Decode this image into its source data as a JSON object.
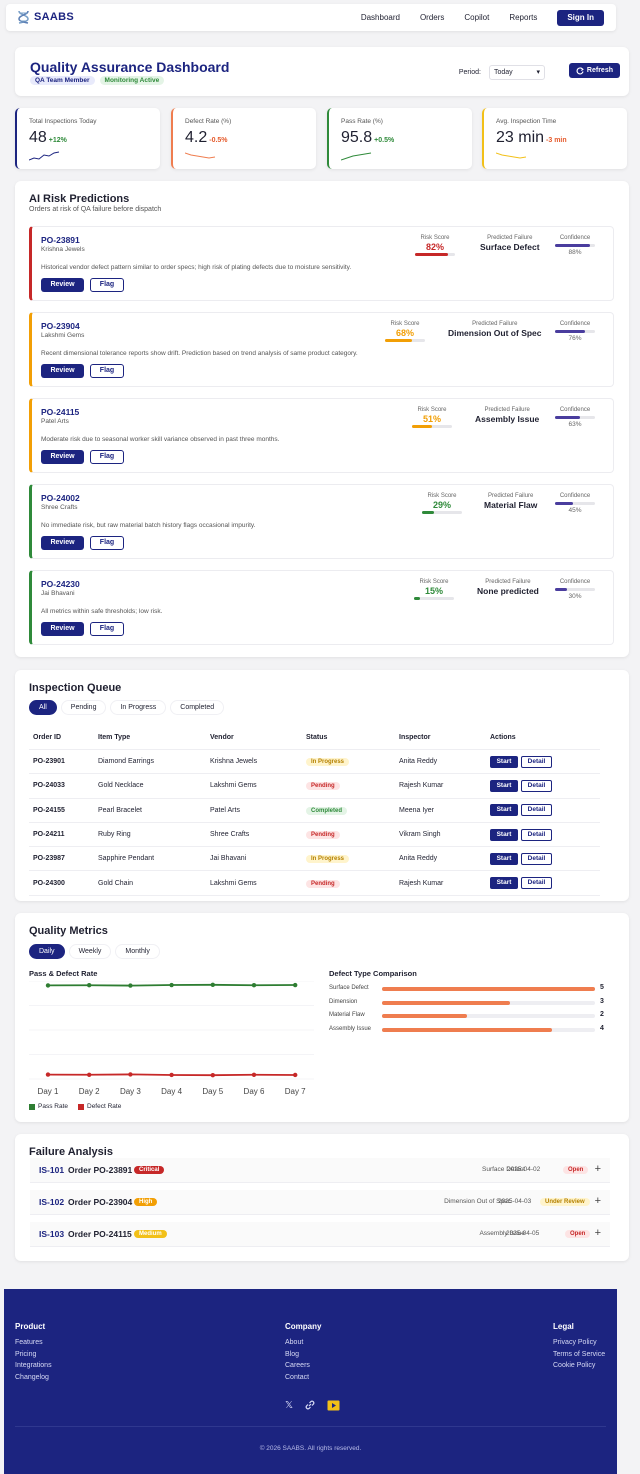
{
  "nav": {
    "brand": "SAABS",
    "links": [
      "Dashboard",
      "Orders",
      "Copilot",
      "Reports"
    ],
    "signin": "Sign In"
  },
  "header": {
    "title": "Quality Assurance Dashboard",
    "badges": [
      "QA Team Member",
      "Monitoring Active"
    ],
    "period_label": "Period:",
    "period_value": "Today",
    "refresh": "Refresh"
  },
  "stats": [
    {
      "label": "Total Inspections Today",
      "value": "48",
      "delta": "+12%",
      "color": "#1c2480",
      "delta_color": "#2f8a3a"
    },
    {
      "label": "Defect Rate (%)",
      "value": "4.2",
      "delta": "-0.5%",
      "color": "#ef7d4f",
      "delta_color": "#e55a2b"
    },
    {
      "label": "Pass Rate (%)",
      "value": "95.8",
      "delta": "+0.5%",
      "color": "#2f8a3a",
      "delta_color": "#2f8a3a"
    },
    {
      "label": "Avg. Inspection Time",
      "value": "23 min",
      "delta": "-3 min",
      "color": "#f2c018",
      "delta_color": "#e55a2b"
    }
  ],
  "risk": {
    "title": "AI Risk Predictions",
    "subtitle": "Orders at risk of QA failure before dispatch",
    "labels": {
      "risk_score": "Risk Score",
      "predicted": "Predicted Failure",
      "confidence": "Confidence",
      "review": "Review",
      "flag": "Flag"
    },
    "items": [
      {
        "po": "PO-23891",
        "vendor": "Krishna Jewels",
        "score": "82%",
        "score_pct": 82,
        "failure": "Surface Defect",
        "confidence": "88%",
        "conf_pct": 88,
        "desc": "Historical vendor defect pattern similar to order specs; high risk of plating defects due to moisture sensitivity.",
        "color": "#c62828"
      },
      {
        "po": "PO-23904",
        "vendor": "Lakshmi Gems",
        "score": "68%",
        "score_pct": 68,
        "failure": "Dimension Out of Spec",
        "confidence": "76%",
        "conf_pct": 76,
        "desc": "Recent dimensional tolerance reports show drift. Prediction based on trend analysis of same product category.",
        "color": "#f29f05"
      },
      {
        "po": "PO-24115",
        "vendor": "Patel Arts",
        "score": "51%",
        "score_pct": 51,
        "failure": "Assembly Issue",
        "confidence": "63%",
        "conf_pct": 63,
        "desc": "Moderate risk due to seasonal worker skill variance observed in past three months.",
        "color": "#f29f05"
      },
      {
        "po": "PO-24002",
        "vendor": "Shree Crafts",
        "score": "29%",
        "score_pct": 29,
        "failure": "Material Flaw",
        "confidence": "45%",
        "conf_pct": 45,
        "desc": "No immediate risk, but raw material batch history flags occasional impurity.",
        "color": "#2f8a3a"
      },
      {
        "po": "PO-24230",
        "vendor": "Jai Bhavani",
        "score": "15%",
        "score_pct": 15,
        "failure": "None predicted",
        "confidence": "30%",
        "conf_pct": 30,
        "desc": "All metrics within safe thresholds; low risk.",
        "color": "#2f8a3a"
      }
    ]
  },
  "queue": {
    "title": "Inspection Queue",
    "tabs": [
      "All",
      "Pending",
      "In Progress",
      "Completed"
    ],
    "columns": [
      "Order ID",
      "Item Type",
      "Vendor",
      "Status",
      "Inspector",
      "Actions"
    ],
    "start": "Start",
    "detail": "Detail",
    "rows": [
      {
        "id": "PO-23901",
        "item": "Diamond Earrings",
        "vendor": "Krishna Jewels",
        "status": "In Progress",
        "inspector": "Anita Reddy"
      },
      {
        "id": "PO-24033",
        "item": "Gold Necklace",
        "vendor": "Lakshmi Gems",
        "status": "Pending",
        "inspector": "Rajesh Kumar"
      },
      {
        "id": "PO-24155",
        "item": "Pearl Bracelet",
        "vendor": "Patel Arts",
        "status": "Completed",
        "inspector": "Meena Iyer"
      },
      {
        "id": "PO-24211",
        "item": "Ruby Ring",
        "vendor": "Shree Crafts",
        "status": "Pending",
        "inspector": "Vikram Singh"
      },
      {
        "id": "PO-23987",
        "item": "Sapphire Pendant",
        "vendor": "Jai Bhavani",
        "status": "In Progress",
        "inspector": "Anita Reddy"
      },
      {
        "id": "PO-24300",
        "item": "Gold Chain",
        "vendor": "Lakshmi Gems",
        "status": "Pending",
        "inspector": "Rajesh Kumar"
      }
    ]
  },
  "metrics": {
    "title": "Quality Metrics",
    "tabs": [
      "Daily",
      "Weekly",
      "Monthly"
    ],
    "line_title": "Pass & Defect Rate",
    "bar_title": "Defect Type Comparison"
  },
  "chart_data": [
    {
      "type": "line",
      "title": "Pass & Defect Rate",
      "categories": [
        "Day 1",
        "Day 2",
        "Day 3",
        "Day 4",
        "Day 5",
        "Day 6",
        "Day 7"
      ],
      "series": [
        {
          "name": "Pass Rate",
          "color": "#2e7d32",
          "values": [
            95.5,
            95.7,
            95.3,
            95.9,
            96.1,
            95.7,
            95.9
          ]
        },
        {
          "name": "Defect Rate",
          "color": "#c62828",
          "values": [
            4.5,
            4.3,
            4.7,
            4.1,
            3.9,
            4.3,
            4.1
          ]
        }
      ],
      "ylim": [
        0,
        100
      ],
      "grid": true,
      "legend": "bottom-left"
    },
    {
      "type": "bar",
      "orientation": "horizontal",
      "title": "Defect Type Comparison",
      "categories": [
        "Surface Defect",
        "Dimension",
        "Material Flaw",
        "Assembly Issue"
      ],
      "values": [
        5,
        3,
        2,
        4
      ],
      "xlim": [
        0,
        5
      ],
      "color": "#ef7d4f"
    }
  ],
  "failure": {
    "title": "Failure Analysis",
    "items": [
      {
        "id": "IS-101",
        "order": "Order PO-23891",
        "severity": "Critical",
        "sev_color": "#c62828",
        "type": "Surface Defect",
        "date": "2025-04-02",
        "status": "Open",
        "st_bg": "#fde4e4",
        "st_color": "#c62828"
      },
      {
        "id": "IS-102",
        "order": "Order PO-23904",
        "severity": "High",
        "sev_color": "#f29f05",
        "type": "Dimension Out of Spec",
        "date": "2025-04-03",
        "status": "Under Review",
        "st_bg": "#fff4cc",
        "st_color": "#b58100"
      },
      {
        "id": "IS-103",
        "order": "Order PO-24115",
        "severity": "Medium",
        "sev_color": "#f2c018",
        "type": "Assembly Issue",
        "date": "2025-04-05",
        "status": "Open",
        "st_bg": "#fde4e4",
        "st_color": "#c62828"
      }
    ]
  },
  "footer": {
    "cols": [
      {
        "title": "Product",
        "links": [
          "Features",
          "Pricing",
          "Integrations",
          "Changelog"
        ]
      },
      {
        "title": "Company",
        "links": [
          "About",
          "Blog",
          "Careers",
          "Contact"
        ]
      },
      {
        "title": "Legal",
        "links": [
          "Privacy Policy",
          "Terms of Service",
          "Cookie Policy"
        ]
      }
    ],
    "social": [
      "x-icon",
      "link-icon",
      "video-icon"
    ],
    "copyright": "© 2026 SAABS. All rights reserved."
  }
}
